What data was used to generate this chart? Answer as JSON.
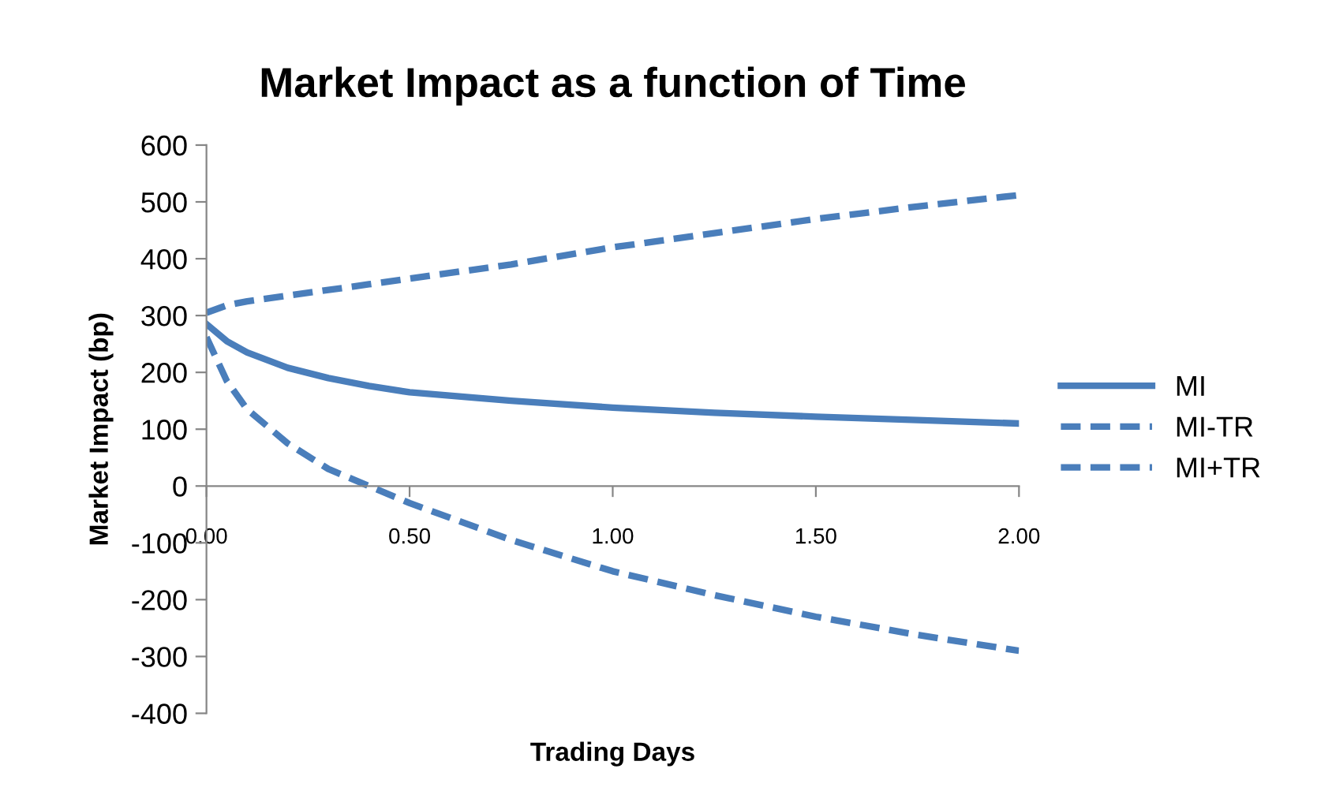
{
  "chart_data": {
    "type": "line",
    "title": "Market Impact as a function of Time",
    "xlabel": "Trading Days",
    "ylabel": "Market Impact (bp)",
    "xlim": [
      0,
      2
    ],
    "xticks": [
      {
        "value": 0,
        "label": "0.00"
      },
      {
        "value": 0.5,
        "label": "0.50"
      },
      {
        "value": 1,
        "label": "1.00"
      },
      {
        "value": 1.5,
        "label": "1.50"
      },
      {
        "value": 2,
        "label": "2.00"
      }
    ],
    "ylim": [
      -400,
      600
    ],
    "yticks": [
      -400,
      -300,
      -200,
      -100,
      0,
      100,
      200,
      300,
      400,
      500,
      600
    ],
    "x": [
      0,
      0.05,
      0.1,
      0.2,
      0.3,
      0.4,
      0.5,
      0.75,
      1.0,
      1.25,
      1.5,
      1.75,
      2.0
    ],
    "grid": false,
    "legend": "right",
    "marker": "none",
    "series": [
      {
        "name": "MI",
        "color": "#4a7ebb",
        "line_style": "solid",
        "values": [
          285,
          255,
          235,
          208,
          190,
          176,
          165,
          150,
          138,
          129,
          122,
          116,
          110
        ]
      },
      {
        "name": "MI-TR",
        "color": "#4a7ebb",
        "line_style": "dashed",
        "values": [
          305,
          318,
          325,
          335,
          345,
          355,
          365,
          390,
          420,
          445,
          470,
          492,
          512
        ]
      },
      {
        "name": "MI+TR",
        "color": "#4a7ebb",
        "line_style": "dashed",
        "values": [
          262,
          185,
          135,
          75,
          30,
          0,
          -30,
          -95,
          -150,
          -192,
          -230,
          -262,
          -290
        ]
      }
    ]
  }
}
